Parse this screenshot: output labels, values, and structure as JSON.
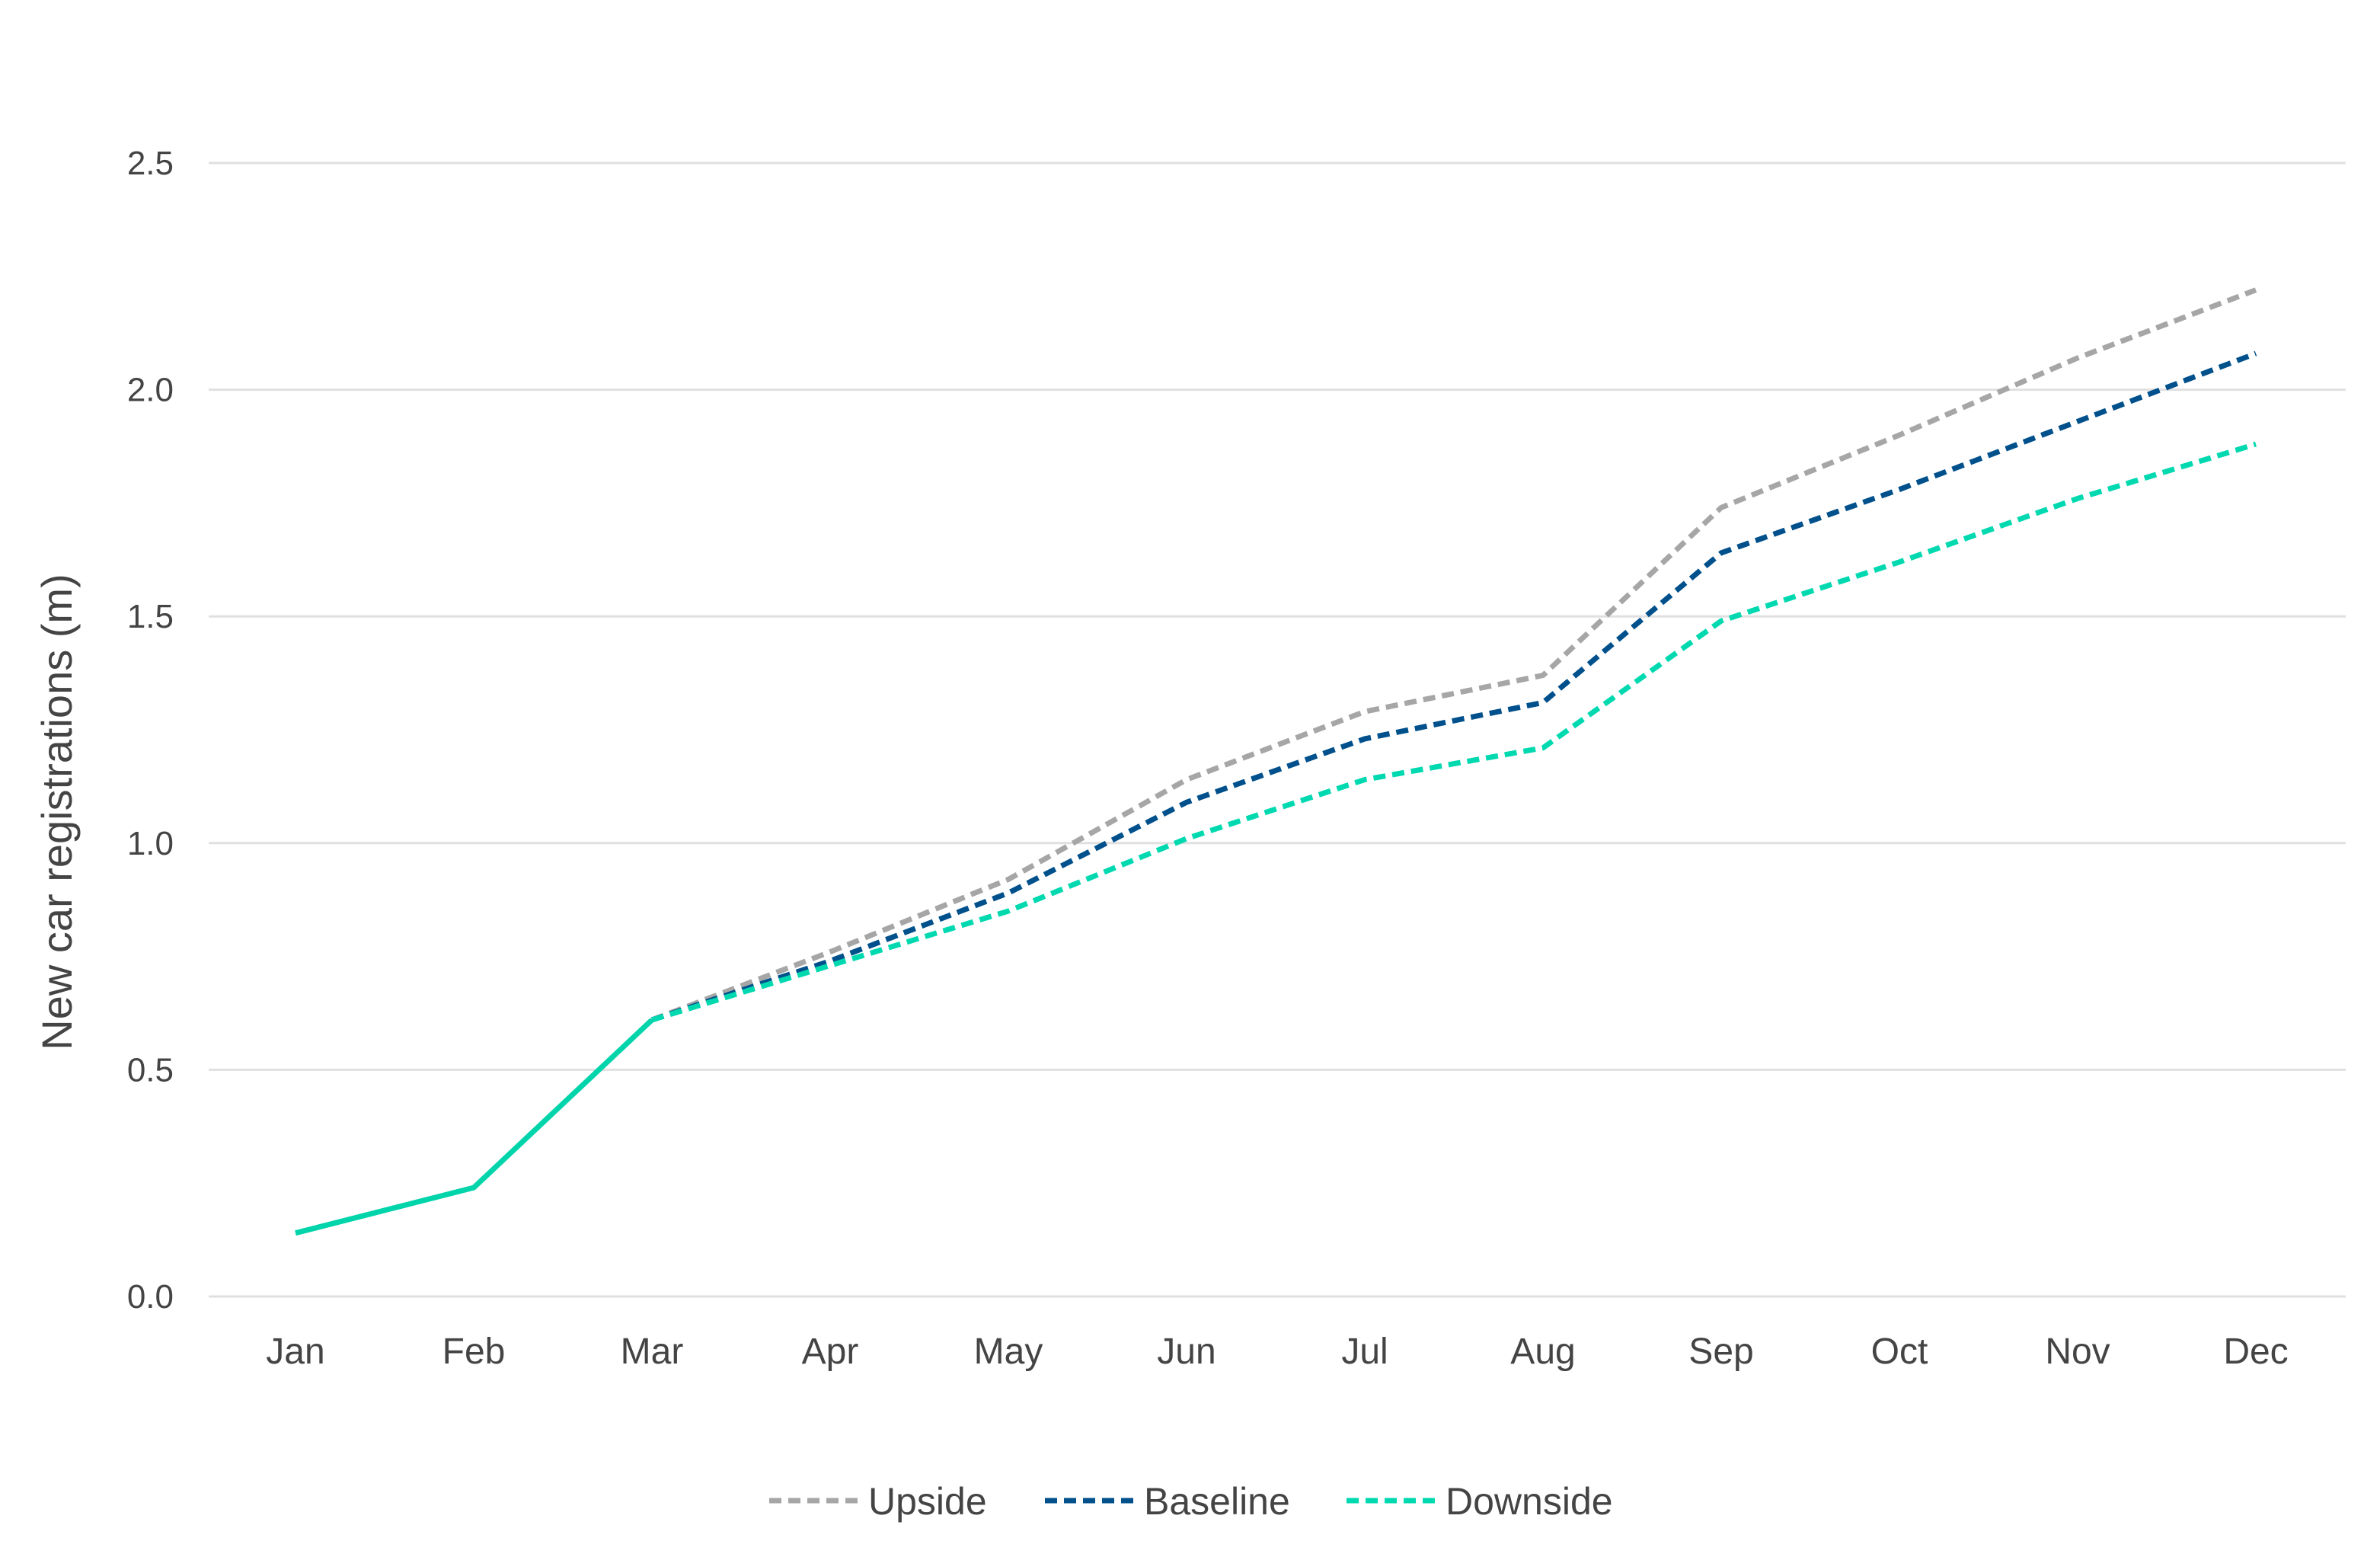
{
  "chart_data": {
    "type": "line",
    "title": "",
    "xlabel": "",
    "ylabel": "New car registrations (m)",
    "ylim": [
      0,
      2.5
    ],
    "yticks": [
      "0.0",
      "0.5",
      "1.0",
      "1.5",
      "2.0",
      "2.5"
    ],
    "grid": "horizontal",
    "legend_position": "bottom",
    "categories": [
      "Jan",
      "Feb",
      "Mar",
      "Apr",
      "May",
      "Jun",
      "Jul",
      "Aug",
      "Sep",
      "Oct",
      "Nov",
      "Dec"
    ],
    "actual": {
      "color": "#00d4aa",
      "style": "solid",
      "values": [
        0.14,
        0.24,
        0.61
      ]
    },
    "series": [
      {
        "name": "Upside",
        "color": "#a6a6a6",
        "style": "dashed",
        "values": [
          null,
          null,
          0.61,
          0.76,
          0.92,
          1.14,
          1.29,
          1.37,
          1.74,
          1.9,
          2.07,
          2.22
        ]
      },
      {
        "name": "Baseline",
        "color": "#00508c",
        "style": "dashed",
        "values": [
          null,
          null,
          0.61,
          0.74,
          0.89,
          1.09,
          1.23,
          1.31,
          1.64,
          1.78,
          1.93,
          2.08
        ]
      },
      {
        "name": "Downside",
        "color": "#00d9b0",
        "style": "dashed",
        "values": [
          null,
          null,
          0.61,
          0.73,
          0.85,
          1.01,
          1.14,
          1.21,
          1.49,
          1.62,
          1.76,
          1.88
        ]
      }
    ]
  }
}
